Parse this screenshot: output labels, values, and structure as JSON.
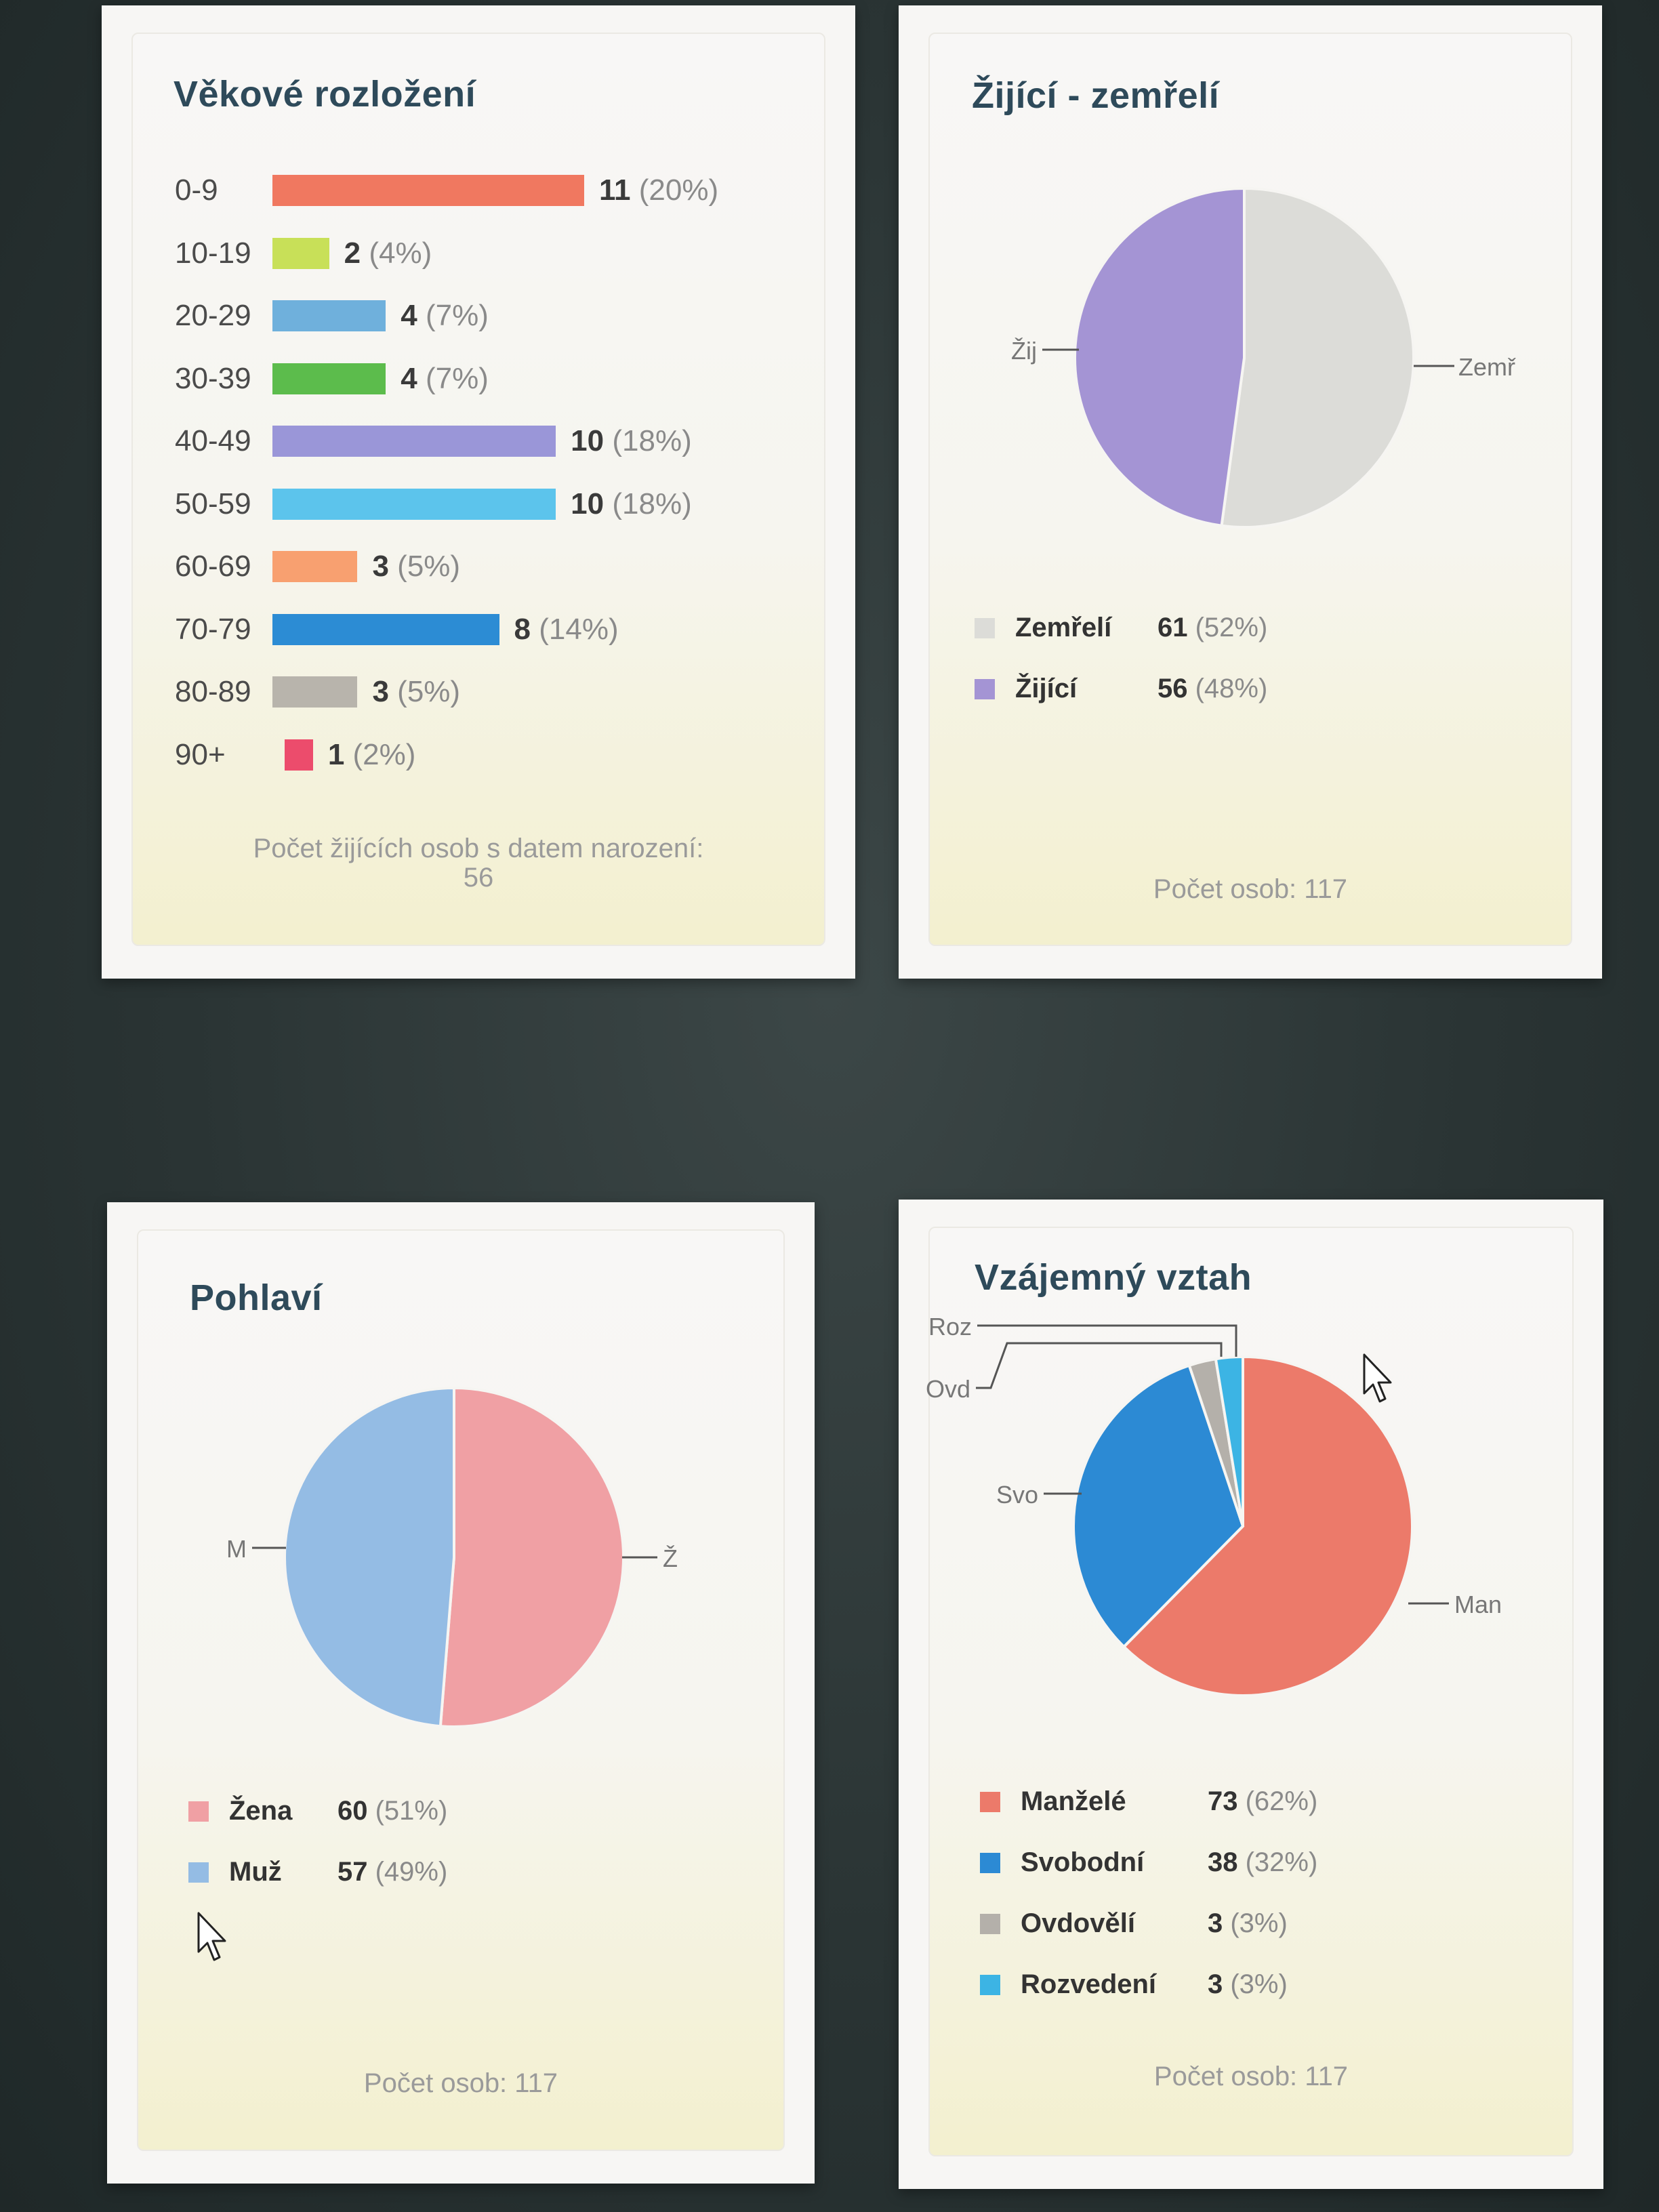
{
  "age_card": {
    "title": "Věkové rozložení",
    "footer_line1": "Počet žijících osob s datem narození:",
    "footer_line2": "56"
  },
  "alive_card": {
    "title": "Žijící - zemřelí",
    "footer": "Počet osob: 117"
  },
  "gender_card": {
    "title": "Pohlaví",
    "footer": "Počet osob: 117"
  },
  "relation_card": {
    "title": "Vzájemný vztah",
    "footer": "Počet osob: 117"
  },
  "chart_data": [
    {
      "type": "bar",
      "orientation": "horizontal",
      "title": "Věkové rozložení",
      "categories": [
        "0-9",
        "10-19",
        "20-29",
        "30-39",
        "40-49",
        "50-59",
        "60-69",
        "70-79",
        "80-89",
        "90+"
      ],
      "values": [
        11,
        2,
        4,
        4,
        10,
        10,
        3,
        8,
        3,
        1
      ],
      "value_labels": [
        "11",
        "2",
        "4",
        "4",
        "10",
        "10",
        "3",
        "8",
        "3",
        "1"
      ],
      "percent_labels": [
        "(20%)",
        "(4%)",
        "(7%)",
        "(7%)",
        "(18%)",
        "(18%)",
        "(5%)",
        "(14%)",
        "(5%)",
        "(2%)"
      ],
      "colors": [
        "#f07860",
        "#c8e058",
        "#6fb0dc",
        "#5cbc4c",
        "#9a96d8",
        "#5cc4ec",
        "#f8a070",
        "#2c8cd4",
        "#b8b4ac",
        "#ec4c6c"
      ],
      "grid": false
    },
    {
      "type": "pie",
      "title": "Žijící - zemřelí",
      "slices": [
        {
          "name": "Zemřelí",
          "value": 61,
          "percent_label": "(52%)",
          "short_label": "Zemř",
          "color": "#dcdcd8"
        },
        {
          "name": "Žijící",
          "value": 56,
          "percent_label": "(48%)",
          "short_label": "Žij",
          "color": "#a494d4"
        }
      ],
      "legend_position": "bottom"
    },
    {
      "type": "pie",
      "title": "Pohlaví",
      "slices": [
        {
          "name": "Žena",
          "value": 60,
          "percent_label": "(51%)",
          "short_label": "Ž",
          "color": "#f0a0a4"
        },
        {
          "name": "Muž",
          "value": 57,
          "percent_label": "(49%)",
          "short_label": "M",
          "color": "#94bce4"
        }
      ],
      "legend_position": "bottom"
    },
    {
      "type": "pie",
      "title": "Vzájemný vztah",
      "slices": [
        {
          "name": "Manželé",
          "value": 73,
          "percent_label": "(62%)",
          "short_label": "Man",
          "color": "#ec7a6a"
        },
        {
          "name": "Svobodní",
          "value": 38,
          "percent_label": "(32%)",
          "short_label": "Svo",
          "color": "#2c8ad4"
        },
        {
          "name": "Ovdovělí",
          "value": 3,
          "percent_label": "(3%)",
          "short_label": "Ovd",
          "color": "#b4b0aa"
        },
        {
          "name": "Rozvedení",
          "value": 3,
          "percent_label": "(3%)",
          "short_label": "Roz",
          "color": "#3cb4e4"
        }
      ],
      "legend_position": "bottom"
    }
  ]
}
